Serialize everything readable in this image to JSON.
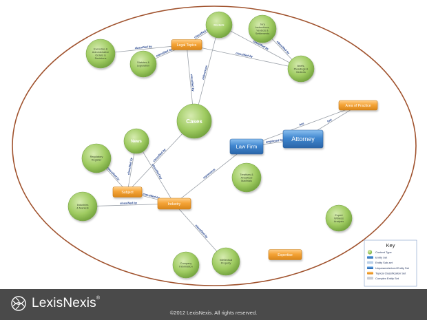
{
  "diagram": {
    "nodes": {
      "dockets": {
        "label": "Dockets",
        "kind": "green-circle"
      },
      "jury": {
        "label": "Jury Instructions, Verdicts & Settlements",
        "kind": "green-circle"
      },
      "exec": {
        "label": "Executive & Administrative Orders & Decisions",
        "kind": "green-circle"
      },
      "statutes": {
        "label": "Statutes & Legislation",
        "kind": "green-circle"
      },
      "briefs": {
        "label": "Briefs, Pleadings & Motions",
        "kind": "green-circle"
      },
      "cases": {
        "label": "Cases",
        "kind": "green-circle"
      },
      "news": {
        "label": "News",
        "kind": "green-circle"
      },
      "regulatory": {
        "label": "Regulatory Register",
        "kind": "green-circle"
      },
      "treatises": {
        "label": "Treatises & Analytical Materials",
        "kind": "green-circle"
      },
      "industries": {
        "label": "Industries & Markets",
        "kind": "green-circle"
      },
      "expert": {
        "label": "Expert Witness Analysis",
        "kind": "green-circle"
      },
      "company": {
        "label": "Company Information",
        "kind": "green-circle"
      },
      "ip": {
        "label": "Intellectual Property",
        "kind": "green-circle"
      },
      "legal_topics": {
        "label": "Legal Topics",
        "kind": "orange-box"
      },
      "area_practice": {
        "label": "Area of Practice",
        "kind": "orange-box"
      },
      "subject": {
        "label": "Subject",
        "kind": "orange-box"
      },
      "industry": {
        "label": "Industry",
        "kind": "orange-box"
      },
      "expertise": {
        "label": "Expertise",
        "kind": "orange-box"
      },
      "law_firm": {
        "label": "Law Firm",
        "kind": "blue-box"
      },
      "attorney": {
        "label": "Attorney",
        "kind": "blue-box"
      }
    },
    "edges": [
      {
        "from": "exec",
        "to": "legal_topics",
        "label": "classified by"
      },
      {
        "from": "statutes",
        "to": "legal_topics",
        "label": "classified by"
      },
      {
        "from": "dockets",
        "to": "legal_topics",
        "label": "classified by"
      },
      {
        "from": "legal_topics",
        "to": "briefs",
        "label": "classified by"
      },
      {
        "from": "dockets",
        "to": "briefs",
        "label": "classified by"
      },
      {
        "from": "jury",
        "to": "briefs",
        "label": "classified by"
      },
      {
        "from": "legal_topics",
        "to": "cases",
        "label": "classified by"
      },
      {
        "from": "dockets",
        "to": "cases",
        "label": "references"
      },
      {
        "from": "cases",
        "to": "subject",
        "label": "classified by"
      },
      {
        "from": "news",
        "to": "subject",
        "label": "classified by"
      },
      {
        "from": "news",
        "to": "industry",
        "label": "classified by"
      },
      {
        "from": "regulatory",
        "to": "subject",
        "label": "classified by"
      },
      {
        "from": "industries",
        "to": "industry",
        "label": "classified by"
      },
      {
        "from": "subject",
        "to": "industry",
        "label": "classified by"
      },
      {
        "from": "industry",
        "to": "ip",
        "label": "classified by"
      },
      {
        "from": "industry",
        "to": "law_firm",
        "label": "represents"
      },
      {
        "from": "law_firm",
        "to": "attorney",
        "label": "employed by"
      },
      {
        "from": "area_practice",
        "to": "law_firm",
        "label": "has"
      },
      {
        "from": "area_practice",
        "to": "attorney",
        "label": "has"
      }
    ]
  },
  "key": {
    "title": "Key",
    "items": [
      {
        "label": "Content Type",
        "swatch": "green-circle"
      },
      {
        "label": "Entity Set",
        "swatch": "blue-bar"
      },
      {
        "label": "Entity Sub-set",
        "swatch": "lightblue-bar"
      },
      {
        "label": "Unparameterized Entity Set",
        "swatch": "blue-bar"
      },
      {
        "label": "Topical Classification Set",
        "swatch": "orange-bar"
      },
      {
        "label": "Complex Entity Set",
        "swatch": "gray-bar"
      }
    ]
  },
  "colors": {
    "ellipse": "#a0522d",
    "green": "#8fbf4f",
    "orange": "#f0a030",
    "blue": "#3f86cf",
    "edge": "#9aa0a8",
    "edge_label": "#1f3f8a",
    "footer": "#4a4a4a"
  },
  "footer": {
    "brand": "LexisNexis",
    "brand_mark": "®",
    "copyright": "©2012 LexisNexis. All rights reserved."
  },
  "logo_icon": "lexisnexis-knot-icon"
}
